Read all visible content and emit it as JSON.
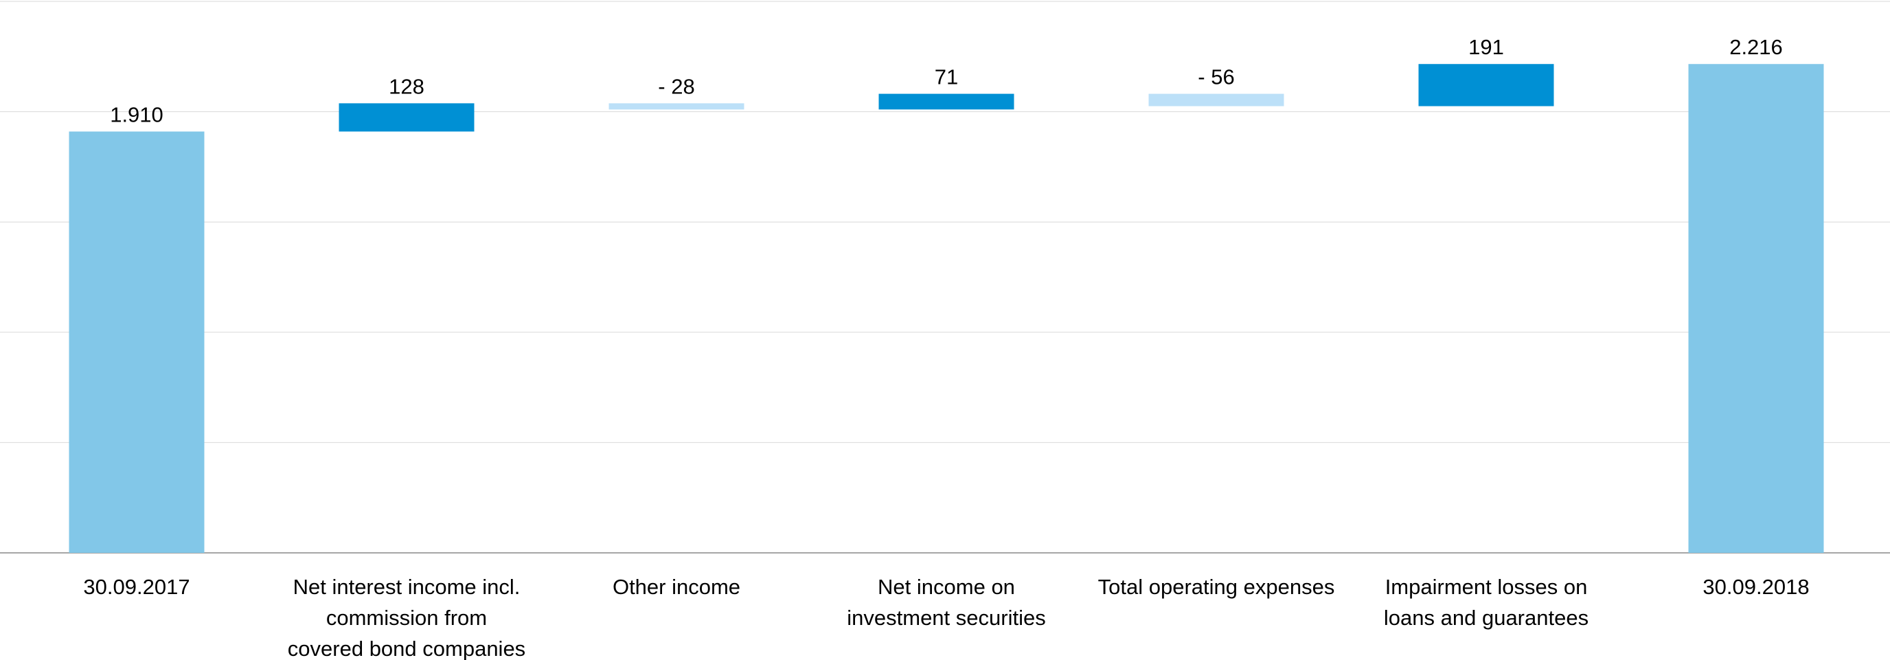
{
  "chart_data": {
    "type": "waterfall",
    "categories": [
      "30.09.2017",
      "Net interest income incl. commission from covered bond companies",
      "Other income",
      "Net income on investment securities",
      "Total operating expenses",
      "Impairment losses on loans and guarantees",
      "30.09.2018"
    ],
    "category_lines": [
      [
        "30.09.2017"
      ],
      [
        "Net interest income incl.",
        "commission from",
        "covered bond companies"
      ],
      [
        "Other income"
      ],
      [
        "Net income on",
        "investment securities"
      ],
      [
        "Total operating expenses"
      ],
      [
        "Impairment losses on",
        "loans and guarantees"
      ],
      [
        "30.09.2018"
      ]
    ],
    "values": [
      1910,
      128,
      -28,
      71,
      -56,
      191,
      2216
    ],
    "kinds": [
      "total",
      "increase",
      "decrease",
      "increase",
      "decrease",
      "increase",
      "total"
    ],
    "data_labels": [
      "1.910",
      "128",
      "- 28",
      "71",
      "- 56",
      "191",
      "2.216"
    ],
    "ylim": [
      0,
      2500
    ],
    "gridlines": [
      0,
      500,
      1000,
      1500,
      2000,
      2500
    ],
    "grid": true,
    "legend": false,
    "colors": {
      "total": "#82C7E8",
      "increase": "#0090D4",
      "decrease": "#BCE0F8",
      "grid": "#D9D9D9",
      "axis": "#A6A6A6"
    }
  }
}
